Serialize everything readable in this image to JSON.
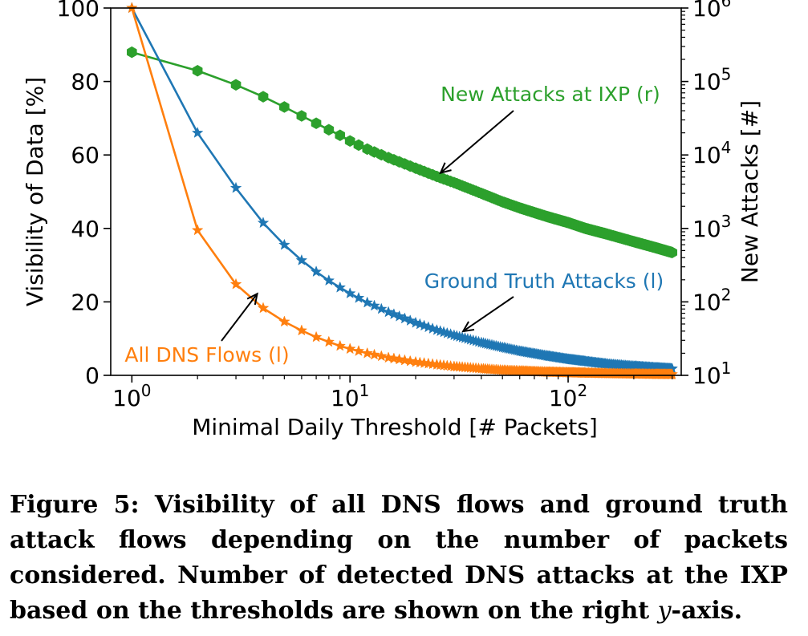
{
  "chart_data": {
    "type": "line",
    "xscale": "log",
    "xlim": [
      0.8,
      330
    ],
    "x_ticks": [
      {
        "value": 1,
        "base": "10",
        "exp": "0"
      },
      {
        "value": 10,
        "base": "10",
        "exp": "1"
      },
      {
        "value": 100,
        "base": "10",
        "exp": "2"
      }
    ],
    "xlabel": "Minimal Daily Threshold [# Packets]",
    "ylabel_left": "Visibility of Data [%]",
    "ylim_left": [
      0,
      100
    ],
    "y_ticks_left": [
      "0",
      "20",
      "40",
      "60",
      "80",
      "100"
    ],
    "ylabel_right": "New Attacks [#]",
    "yscale_right": "log",
    "ylim_right": [
      10,
      1000000
    ],
    "y_ticks_right": [
      {
        "value": 10,
        "base": "10",
        "exp": "1"
      },
      {
        "value": 100,
        "base": "10",
        "exp": "2"
      },
      {
        "value": 1000,
        "base": "10",
        "exp": "3"
      },
      {
        "value": 10000,
        "base": "10",
        "exp": "4"
      },
      {
        "value": 100000,
        "base": "10",
        "exp": "5"
      },
      {
        "value": 1000000,
        "base": "10",
        "exp": "6"
      }
    ],
    "x": [
      1,
      2,
      3,
      4,
      5,
      6,
      7,
      8,
      9,
      10,
      12,
      15,
      20,
      25,
      30,
      40,
      50,
      60,
      80,
      100,
      120,
      150,
      200,
      250,
      300
    ],
    "series": [
      {
        "name": "All DNS Flows (l)",
        "axis": "left",
        "color": "#ff7f0e",
        "marker": "star",
        "values": [
          100,
          39.5,
          24.8,
          18.3,
          14.6,
          12.2,
          10.4,
          9.1,
          8.0,
          7.2,
          6.0,
          4.8,
          3.6,
          2.9,
          2.4,
          1.8,
          1.4,
          1.2,
          0.9,
          0.75,
          0.62,
          0.5,
          0.38,
          0.3,
          0.26
        ]
      },
      {
        "name": "Ground Truth Attacks (l)",
        "axis": "left",
        "color": "#1f77b4",
        "marker": "star",
        "values": [
          100,
          66,
          51,
          41.5,
          35.5,
          31.3,
          28.2,
          25.8,
          23.9,
          22.3,
          19.8,
          17.2,
          14.3,
          12.3,
          10.9,
          8.9,
          7.6,
          6.6,
          5.3,
          4.4,
          3.8,
          3.1,
          2.5,
          2.1,
          1.8
        ]
      },
      {
        "name": "New Attacks at IXP (r)",
        "axis": "right",
        "color": "#2ca02c",
        "marker": "hexagon",
        "values": [
          250000,
          140000,
          90000,
          62000,
          45000,
          34000,
          27000,
          22000,
          18500,
          15500,
          12000,
          9200,
          6600,
          5100,
          4200,
          3000,
          2300,
          1900,
          1450,
          1200,
          1000,
          840,
          660,
          550,
          470
        ]
      }
    ],
    "annotations": [
      {
        "text": "New Attacks at IXP (r)",
        "color": "#2ca02c",
        "series": "New Attacks at IXP (r)"
      },
      {
        "text": "Ground Truth Attacks (l)",
        "color": "#1f77b4",
        "series": "Ground Truth Attacks (l)"
      },
      {
        "text": "All DNS Flows (l)",
        "color": "#ff7f0e",
        "series": "All DNS Flows (l)"
      }
    ]
  },
  "caption": {
    "main": "Figure 5: Visibility of all DNS flows and ground truth attack flows depending on the number of packets considered. Number of detected DNS attacks at the IXP based on the thresholds are shown on the right ",
    "var": "y",
    "tail": "-axis."
  }
}
